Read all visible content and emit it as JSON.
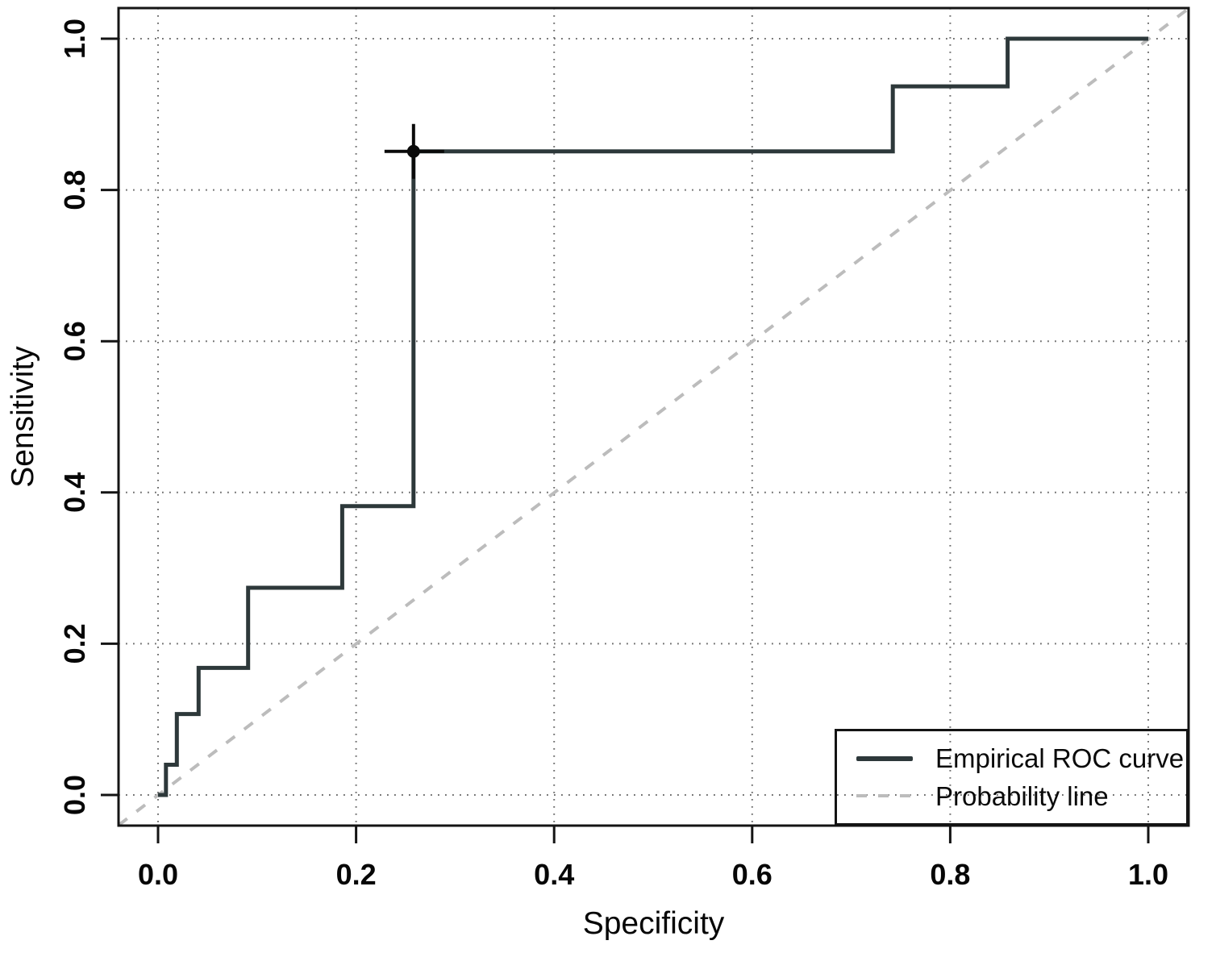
{
  "chart_data": {
    "type": "line",
    "subtype": "empirical-roc-step-plot",
    "title": "",
    "xlabel": "Specificity",
    "ylabel": "Sensitivity",
    "xlim": [
      0,
      1
    ],
    "ylim": [
      0,
      1
    ],
    "grid": "dotted-both-axes",
    "legend_position": "bottom-right",
    "x_ticks": {
      "values": [
        0,
        0.2,
        0.4,
        0.6,
        0.8,
        1.0
      ],
      "labels": [
        "0.0",
        "0.2",
        "0.4",
        "0.6",
        "0.8",
        "1.0"
      ]
    },
    "y_ticks": {
      "values": [
        0,
        0.2,
        0.4,
        0.6,
        0.8,
        1.0
      ],
      "labels": [
        "0.0",
        "0.2",
        "0.4",
        "0.6",
        "0.8",
        "1.0"
      ]
    },
    "series": [
      {
        "name": "Empirical ROC curve",
        "style": "solid-step",
        "color": "#2d383a",
        "points": [
          [
            0,
            0
          ],
          [
            0.008,
            0
          ],
          [
            0.008,
            0.04
          ],
          [
            0.019,
            0.04
          ],
          [
            0.019,
            0.107
          ],
          [
            0.041,
            0.107
          ],
          [
            0.041,
            0.168
          ],
          [
            0.091,
            0.168
          ],
          [
            0.091,
            0.274
          ],
          [
            0.186,
            0.274
          ],
          [
            0.186,
            0.382
          ],
          [
            0.258,
            0.382
          ],
          [
            0.258,
            0.851
          ],
          [
            0.742,
            0.851
          ],
          [
            0.742,
            0.937
          ],
          [
            0.858,
            0.937
          ],
          [
            0.858,
            1.0
          ],
          [
            1.0,
            1.0
          ]
        ]
      },
      {
        "name": "Probability line",
        "style": "dashed-diagonal",
        "color": "#bcbcbc",
        "points": [
          [
            0,
            0
          ],
          [
            1,
            1
          ]
        ]
      }
    ],
    "marked_point": {
      "x": 0.258,
      "y": 0.851,
      "marker": "filled-circle-with-crosshair",
      "color": "#0a0a0a"
    }
  },
  "legend": {
    "items": [
      {
        "label": "Empirical ROC curve",
        "swatch": "solid-dark-line"
      },
      {
        "label": "Probability line",
        "swatch": "dashed-gray-line"
      }
    ]
  },
  "colors": {
    "roc_curve": "#2d383a",
    "probability_line": "#bcbcbc",
    "grid": "#6e6e6e",
    "axis": "#141414",
    "tick_label": "#060606",
    "marked_point": "#0a0a0a",
    "background": "#ffffff"
  }
}
